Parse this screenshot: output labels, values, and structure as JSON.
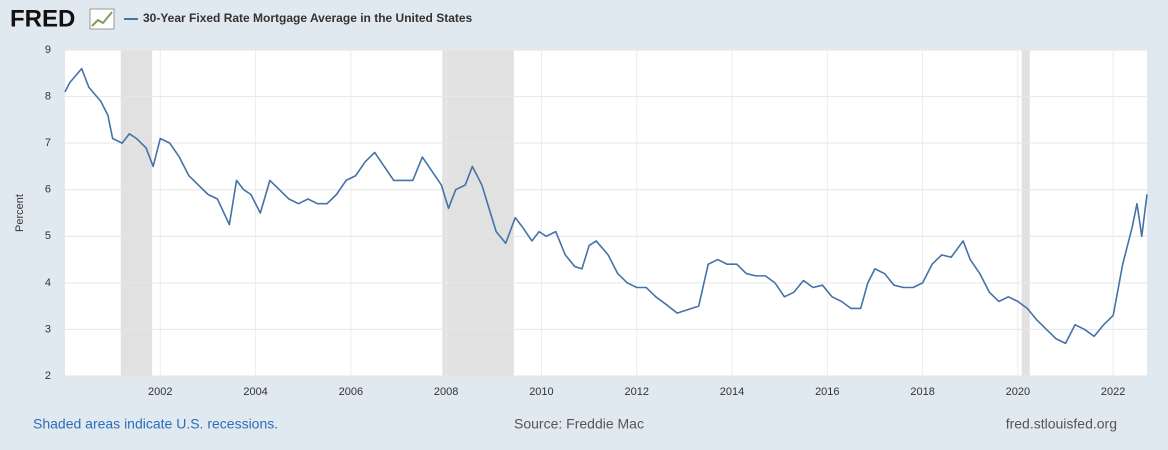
{
  "chart_data": {
    "type": "line",
    "logo": "FRED",
    "y_label": "Percent",
    "footer_note": "Shaded areas indicate U.S. recessions.",
    "source": "Source: Freddie Mac",
    "site": "fred.stlouisfed.org",
    "xlim": [
      2000,
      2022.71
    ],
    "xticks": [
      2002,
      2004,
      2006,
      2008,
      2010,
      2012,
      2014,
      2016,
      2018,
      2020,
      2022
    ],
    "ylim": [
      2,
      9
    ],
    "yticks": [
      2,
      3,
      4,
      5,
      6,
      7,
      8,
      9
    ],
    "grid": true,
    "recession_color": "#e1e1e1",
    "recessions": [
      [
        2001.17,
        2001.83
      ],
      [
        2007.92,
        2009.42
      ],
      [
        2020.08,
        2020.25
      ]
    ],
    "x": [
      2000.0,
      2000.1,
      2000.35,
      2000.5,
      2000.75,
      2000.9,
      2001.0,
      2001.2,
      2001.35,
      2001.5,
      2001.7,
      2001.85,
      2002.0,
      2002.2,
      2002.4,
      2002.6,
      2002.8,
      2003.0,
      2003.2,
      2003.45,
      2003.6,
      2003.75,
      2003.9,
      2004.1,
      2004.3,
      2004.5,
      2004.7,
      2004.9,
      2005.1,
      2005.3,
      2005.5,
      2005.7,
      2005.9,
      2006.1,
      2006.3,
      2006.5,
      2006.7,
      2006.9,
      2007.1,
      2007.3,
      2007.5,
      2007.7,
      2007.9,
      2008.05,
      2008.2,
      2008.4,
      2008.55,
      2008.75,
      2008.9,
      2009.05,
      2009.25,
      2009.45,
      2009.6,
      2009.8,
      2009.95,
      2010.1,
      2010.3,
      2010.5,
      2010.7,
      2010.85,
      2011.0,
      2011.15,
      2011.4,
      2011.6,
      2011.8,
      2012.0,
      2012.2,
      2012.4,
      2012.6,
      2012.85,
      2013.0,
      2013.3,
      2013.5,
      2013.7,
      2013.9,
      2014.1,
      2014.3,
      2014.5,
      2014.7,
      2014.9,
      2015.1,
      2015.3,
      2015.5,
      2015.7,
      2015.9,
      2016.1,
      2016.3,
      2016.5,
      2016.7,
      2016.85,
      2017.0,
      2017.2,
      2017.4,
      2017.6,
      2017.8,
      2018.0,
      2018.2,
      2018.4,
      2018.6,
      2018.85,
      2019.0,
      2019.2,
      2019.4,
      2019.6,
      2019.8,
      2020.0,
      2020.2,
      2020.4,
      2020.6,
      2020.8,
      2021.0,
      2021.2,
      2021.4,
      2021.6,
      2021.8,
      2022.0,
      2022.2,
      2022.4,
      2022.5,
      2022.6,
      2022.71
    ],
    "series": [
      {
        "name": "30-Year Fixed Rate Mortgage Average in the United States",
        "color": "#4572a7",
        "values": [
          8.1,
          8.3,
          8.6,
          8.2,
          7.9,
          7.6,
          7.1,
          7.0,
          7.2,
          7.1,
          6.9,
          6.5,
          7.1,
          7.0,
          6.7,
          6.3,
          6.1,
          5.9,
          5.8,
          5.25,
          6.2,
          6.0,
          5.9,
          5.5,
          6.2,
          6.0,
          5.8,
          5.7,
          5.8,
          5.7,
          5.7,
          5.9,
          6.2,
          6.3,
          6.6,
          6.8,
          6.5,
          6.2,
          6.2,
          6.2,
          6.7,
          6.4,
          6.1,
          5.6,
          6.0,
          6.1,
          6.5,
          6.1,
          5.6,
          5.1,
          4.85,
          5.4,
          5.2,
          4.9,
          5.1,
          5.0,
          5.1,
          4.6,
          4.35,
          4.3,
          4.8,
          4.9,
          4.6,
          4.2,
          4.0,
          3.9,
          3.9,
          3.7,
          3.55,
          3.35,
          3.4,
          3.5,
          4.4,
          4.5,
          4.4,
          4.4,
          4.2,
          4.15,
          4.15,
          4.0,
          3.7,
          3.8,
          4.05,
          3.9,
          3.95,
          3.7,
          3.6,
          3.45,
          3.45,
          4.0,
          4.3,
          4.2,
          3.95,
          3.9,
          3.9,
          4.0,
          4.4,
          4.6,
          4.55,
          4.9,
          4.5,
          4.2,
          3.8,
          3.6,
          3.7,
          3.6,
          3.45,
          3.2,
          3.0,
          2.8,
          2.7,
          3.1,
          3.0,
          2.85,
          3.1,
          3.3,
          4.4,
          5.2,
          5.7,
          5.0,
          5.9
        ]
      }
    ]
  }
}
